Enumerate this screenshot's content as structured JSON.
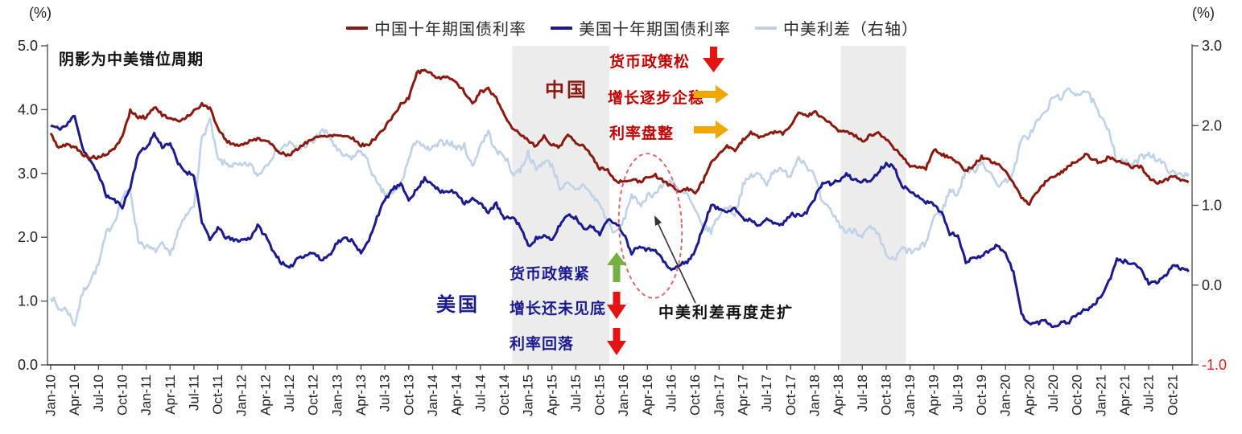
{
  "note": "阴影为中美错位周期",
  "legend": {
    "items": [
      {
        "label": "中国十年期国债利率",
        "color": "#8a1a10"
      },
      {
        "label": "美国十年期国债利率",
        "color": "#1b1b8e"
      },
      {
        "label": "中美利差（右轴）",
        "color": "#bfd2e7"
      }
    ]
  },
  "annotations": {
    "china": {
      "label": "中国",
      "color": "#8a1a10",
      "text_color": "#c00000",
      "rows": [
        {
          "text": "货币政策松",
          "arrow": "down",
          "arrow_color": "#e41414"
        },
        {
          "text": "增长逐步企稳",
          "arrow": "right",
          "arrow_color": "#f0a800"
        },
        {
          "text": "利率盘整",
          "arrow": "right",
          "arrow_color": "#f0a800"
        }
      ]
    },
    "us": {
      "label": "美国",
      "color": "#1b1b8e",
      "text_color": "#1b1b8e",
      "rows": [
        {
          "text": "货币政策紧",
          "arrow": "up",
          "arrow_color": "#74b042"
        },
        {
          "text": "增长还未见底",
          "arrow": "down",
          "arrow_color": "#e41414"
        },
        {
          "text": "利率回落",
          "arrow": "down",
          "arrow_color": "#e41414"
        }
      ]
    },
    "spread_callout": "中美利差再度走扩"
  },
  "chart_data": {
    "type": "line",
    "title": "",
    "left_axis": {
      "unit": "(%)",
      "min": 0,
      "max": 5,
      "ticks": [
        "5.0",
        "4.0",
        "3.0",
        "2.0",
        "1.0",
        "0.0"
      ]
    },
    "right_axis": {
      "unit": "(%)",
      "min": -1,
      "max": 3,
      "ticks": [
        "3.0",
        "2.0",
        "1.0",
        "0.0",
        "-1.0"
      ],
      "last_tick_color": "#e02020"
    },
    "grid": false,
    "legend_position": "top",
    "x_start": "Jan-10",
    "x_end": "Dec-21",
    "x_tick_labels": [
      "Jan-10",
      "Apr-10",
      "Jul-10",
      "Oct-10",
      "Jan-11",
      "Apr-11",
      "Jul-11",
      "Oct-11",
      "Jan-12",
      "Apr-12",
      "Jul-12",
      "Oct-12",
      "Jan-13",
      "Apr-13",
      "Jul-13",
      "Oct-13",
      "Jan-14",
      "Apr-14",
      "Jul-14",
      "Oct-14",
      "Jan-15",
      "Apr-15",
      "Jul-15",
      "Oct-15",
      "Jan-16",
      "Apr-16",
      "Jul-16",
      "Oct-16",
      "Jan-17",
      "Apr-17",
      "Jul-17",
      "Oct-17",
      "Jan-18",
      "Apr-18",
      "Jul-18",
      "Oct-18",
      "Jan-19",
      "Apr-19",
      "Jul-19",
      "Oct-19",
      "Jan-20",
      "Apr-20",
      "Jul-20",
      "Oct-20",
      "Jan-21",
      "Apr-21",
      "Jul-21",
      "Oct-21"
    ],
    "shaded_periods": [
      {
        "from": "Nov-14",
        "to": "Nov-15",
        "from_month_index": 58,
        "to_month_index": 70.2
      },
      {
        "from": "May-18",
        "to": "Dec-18",
        "from_month_index": 99.3,
        "to_month_index": 107.5
      }
    ],
    "series": [
      {
        "name": "中国十年期国债利率",
        "axis": "left",
        "color": "#8a1a10",
        "monthly_values": [
          3.62,
          3.4,
          3.45,
          3.42,
          3.3,
          3.25,
          3.25,
          3.3,
          3.38,
          3.58,
          3.98,
          3.88,
          3.88,
          4.05,
          3.92,
          3.85,
          3.82,
          3.88,
          3.98,
          4.08,
          4.02,
          3.72,
          3.52,
          3.45,
          3.45,
          3.5,
          3.55,
          3.52,
          3.42,
          3.32,
          3.28,
          3.38,
          3.48,
          3.55,
          3.58,
          3.6,
          3.6,
          3.59,
          3.55,
          3.44,
          3.46,
          3.58,
          3.72,
          3.9,
          4.08,
          4.18,
          4.58,
          4.62,
          4.55,
          4.48,
          4.52,
          4.42,
          4.28,
          4.08,
          4.28,
          4.32,
          4.18,
          3.92,
          3.72,
          3.62,
          3.52,
          3.42,
          3.58,
          3.45,
          3.42,
          3.62,
          3.48,
          3.42,
          3.28,
          3.08,
          3.05,
          2.88,
          2.86,
          2.9,
          2.87,
          2.93,
          2.97,
          2.88,
          2.8,
          2.72,
          2.76,
          2.7,
          2.88,
          3.18,
          3.32,
          3.42,
          3.35,
          3.52,
          3.65,
          3.57,
          3.6,
          3.66,
          3.62,
          3.74,
          3.96,
          3.9,
          3.96,
          3.88,
          3.78,
          3.66,
          3.64,
          3.6,
          3.5,
          3.6,
          3.64,
          3.54,
          3.4,
          3.28,
          3.12,
          3.1,
          3.08,
          3.38,
          3.3,
          3.24,
          3.18,
          3.04,
          3.12,
          3.26,
          3.2,
          3.14,
          3.04,
          2.86,
          2.62,
          2.52,
          2.72,
          2.86,
          2.96,
          3.02,
          3.12,
          3.2,
          3.3,
          3.22,
          3.16,
          3.26,
          3.2,
          3.16,
          3.1,
          3.1,
          2.94,
          2.86,
          2.88,
          2.96,
          2.9,
          2.86
        ]
      },
      {
        "name": "美国十年期国债利率",
        "axis": "left",
        "color": "#1b1b8e",
        "monthly_values": [
          3.75,
          3.7,
          3.75,
          3.92,
          3.4,
          3.18,
          3.0,
          2.65,
          2.58,
          2.48,
          2.78,
          3.32,
          3.4,
          3.62,
          3.42,
          3.48,
          3.15,
          3.02,
          2.98,
          2.25,
          1.95,
          2.15,
          2.0,
          1.95,
          1.96,
          1.98,
          2.18,
          2.02,
          1.78,
          1.6,
          1.5,
          1.68,
          1.72,
          1.76,
          1.64,
          1.72,
          1.92,
          1.98,
          1.95,
          1.74,
          1.95,
          2.32,
          2.58,
          2.76,
          2.82,
          2.6,
          2.74,
          2.92,
          2.84,
          2.7,
          2.72,
          2.7,
          2.54,
          2.6,
          2.52,
          2.4,
          2.52,
          2.28,
          2.32,
          2.18,
          1.86,
          1.98,
          2.02,
          1.94,
          2.2,
          2.36,
          2.3,
          2.15,
          2.16,
          2.06,
          2.26,
          2.24,
          2.06,
          1.76,
          1.88,
          1.8,
          1.82,
          1.62,
          1.48,
          1.56,
          1.62,
          1.78,
          2.16,
          2.5,
          2.44,
          2.42,
          2.46,
          2.28,
          2.28,
          2.18,
          2.32,
          2.2,
          2.2,
          2.36,
          2.34,
          2.4,
          2.6,
          2.86,
          2.84,
          2.88,
          2.98,
          2.9,
          2.88,
          2.88,
          3.02,
          3.16,
          3.1,
          2.82,
          2.7,
          2.66,
          2.55,
          2.52,
          2.38,
          2.05,
          2.04,
          1.6,
          1.7,
          1.7,
          1.8,
          1.88,
          1.74,
          1.45,
          0.8,
          0.64,
          0.66,
          0.7,
          0.6,
          0.66,
          0.68,
          0.8,
          0.86,
          0.92,
          1.08,
          1.3,
          1.64,
          1.62,
          1.6,
          1.5,
          1.28,
          1.28,
          1.38,
          1.56,
          1.52,
          1.46
        ]
      },
      {
        "name": "中美利差（右轴）",
        "axis": "right",
        "color": "#bfd2e7",
        "monthly_values": [
          -0.13,
          -0.3,
          -0.3,
          -0.5,
          -0.1,
          0.07,
          0.25,
          0.65,
          0.8,
          1.1,
          1.2,
          0.56,
          0.48,
          0.43,
          0.5,
          0.37,
          0.67,
          0.86,
          1.0,
          1.83,
          2.07,
          1.57,
          1.52,
          1.5,
          1.49,
          1.52,
          1.37,
          1.5,
          1.64,
          1.72,
          1.78,
          1.7,
          1.76,
          1.79,
          1.94,
          1.88,
          1.68,
          1.61,
          1.6,
          1.7,
          1.51,
          1.26,
          1.14,
          1.14,
          1.26,
          1.58,
          1.84,
          1.7,
          1.71,
          1.78,
          1.8,
          1.72,
          1.74,
          1.48,
          1.76,
          1.92,
          1.66,
          1.64,
          1.4,
          1.44,
          1.66,
          1.44,
          1.56,
          1.51,
          1.22,
          1.26,
          1.18,
          1.27,
          1.12,
          1.02,
          0.79,
          0.64,
          0.8,
          1.14,
          0.99,
          1.13,
          1.15,
          1.26,
          1.32,
          1.16,
          1.14,
          0.92,
          0.72,
          0.68,
          0.88,
          1.0,
          0.89,
          1.24,
          1.37,
          1.39,
          1.28,
          1.46,
          1.42,
          1.38,
          1.62,
          1.5,
          1.36,
          1.02,
          0.94,
          0.78,
          0.66,
          0.7,
          0.62,
          0.72,
          0.62,
          0.38,
          0.3,
          0.46,
          0.42,
          0.44,
          0.53,
          0.86,
          0.92,
          1.19,
          1.14,
          1.44,
          1.42,
          1.56,
          1.4,
          1.26,
          1.3,
          1.41,
          1.82,
          1.88,
          2.06,
          2.16,
          2.36,
          2.36,
          2.44,
          2.4,
          2.44,
          2.3,
          2.08,
          1.96,
          1.56,
          1.54,
          1.5,
          1.6,
          1.66,
          1.58,
          1.5,
          1.4,
          1.38,
          1.4
        ]
      }
    ]
  }
}
